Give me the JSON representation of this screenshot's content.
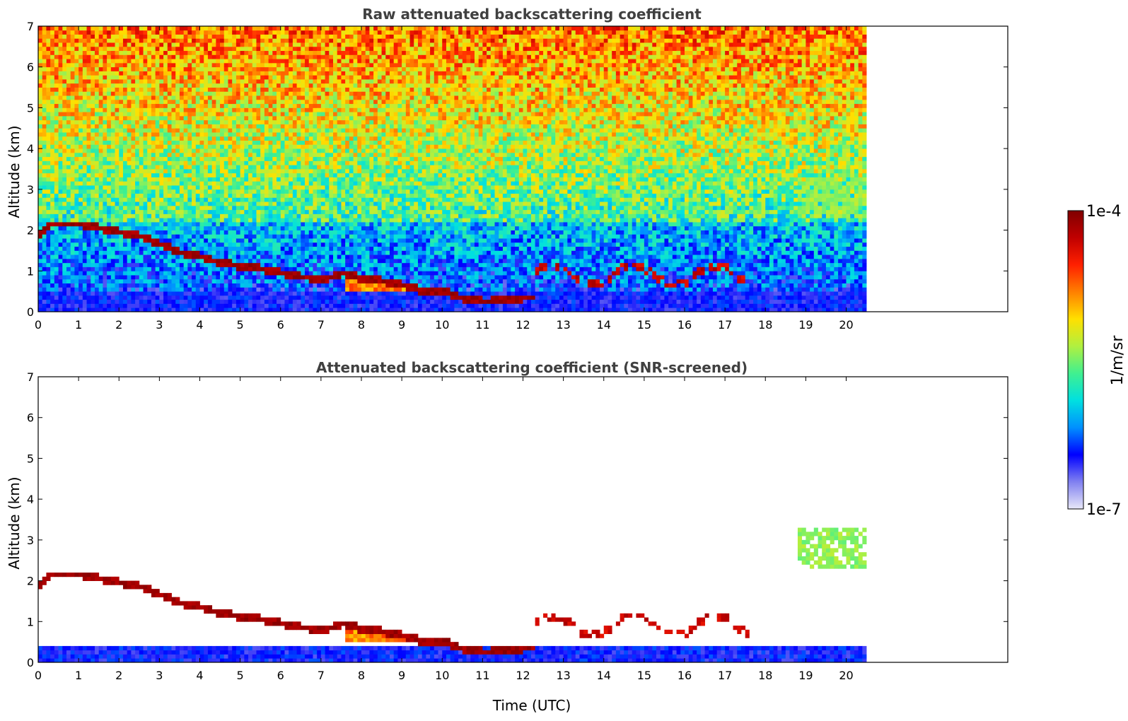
{
  "chart_data": [
    {
      "type": "heatmap",
      "title": "Raw attenuated backscattering coefficient",
      "xlabel": "",
      "ylabel": "Altitude (km)",
      "xlim": [
        0,
        24
      ],
      "ylim": [
        0,
        7
      ],
      "data_xlim": [
        0,
        20.45
      ],
      "xticks": [
        "0",
        "1",
        "2",
        "3",
        "4",
        "5",
        "6",
        "7",
        "8",
        "9",
        "10",
        "11",
        "12",
        "13",
        "14",
        "15",
        "16",
        "17",
        "18",
        "19",
        "20"
      ],
      "yticks": [
        "0",
        "1",
        "2",
        "3",
        "4",
        "5",
        "6",
        "7"
      ],
      "screened": false,
      "layer_altitude_km": {
        "x": [
          0.0,
          0.3,
          0.6,
          1.0,
          1.5,
          2.0,
          2.5,
          3.0,
          3.5,
          4.0,
          4.5,
          5.0,
          5.5,
          6.0,
          6.5,
          7.0,
          7.5,
          8.0,
          8.5,
          9.0,
          9.5,
          10.0,
          10.5,
          11.0,
          11.5,
          12.0
        ],
        "y": [
          1.9,
          2.15,
          2.15,
          2.15,
          2.05,
          1.95,
          1.85,
          1.65,
          1.45,
          1.35,
          1.2,
          1.12,
          1.05,
          0.95,
          0.85,
          0.8,
          0.95,
          0.8,
          0.75,
          0.65,
          0.5,
          0.5,
          0.3,
          0.25,
          0.3,
          0.35
        ]
      },
      "cloud_patch": {
        "x": [
          18.7,
          20.45
        ],
        "y_km": [
          2.3,
          3.3
        ]
      }
    },
    {
      "type": "heatmap",
      "title": "Attenuated backscattering coefficient (SNR-screened)",
      "xlabel": "Time (UTC)",
      "ylabel": "Altitude (km)",
      "xlim": [
        0,
        24
      ],
      "ylim": [
        0,
        7
      ],
      "data_xlim": [
        0,
        20.45
      ],
      "xticks": [
        "0",
        "1",
        "2",
        "3",
        "4",
        "5",
        "6",
        "7",
        "8",
        "9",
        "10",
        "11",
        "12",
        "13",
        "14",
        "15",
        "16",
        "17",
        "18",
        "19",
        "20"
      ],
      "yticks": [
        "0",
        "1",
        "2",
        "3",
        "4",
        "5",
        "6",
        "7"
      ],
      "screened": true,
      "layer_altitude_km": {
        "x": [
          0.0,
          0.3,
          0.6,
          1.0,
          1.5,
          2.0,
          2.5,
          3.0,
          3.5,
          4.0,
          4.5,
          5.0,
          5.5,
          6.0,
          6.5,
          7.0,
          7.5,
          8.0,
          8.5,
          9.0,
          9.5,
          10.0,
          10.5,
          11.0,
          11.5,
          12.0
        ],
        "y": [
          1.9,
          2.15,
          2.15,
          2.15,
          2.05,
          1.95,
          1.85,
          1.65,
          1.45,
          1.35,
          1.2,
          1.12,
          1.05,
          0.95,
          0.85,
          0.8,
          0.95,
          0.8,
          0.75,
          0.65,
          0.5,
          0.5,
          0.3,
          0.25,
          0.3,
          0.35
        ]
      },
      "cloud_patch": {
        "x": [
          18.7,
          20.45
        ],
        "y_km": [
          2.3,
          3.3
        ]
      }
    }
  ],
  "colorbar": {
    "label": "1/m/sr",
    "max_label": "1e-4",
    "min_label": "1e-7",
    "colormap": [
      "#e8e8f8",
      "#8080f0",
      "#0000ff",
      "#0090ff",
      "#00e0e0",
      "#40f090",
      "#b0f040",
      "#ffe000",
      "#ff8000",
      "#ff2000",
      "#c00000",
      "#800000"
    ]
  }
}
